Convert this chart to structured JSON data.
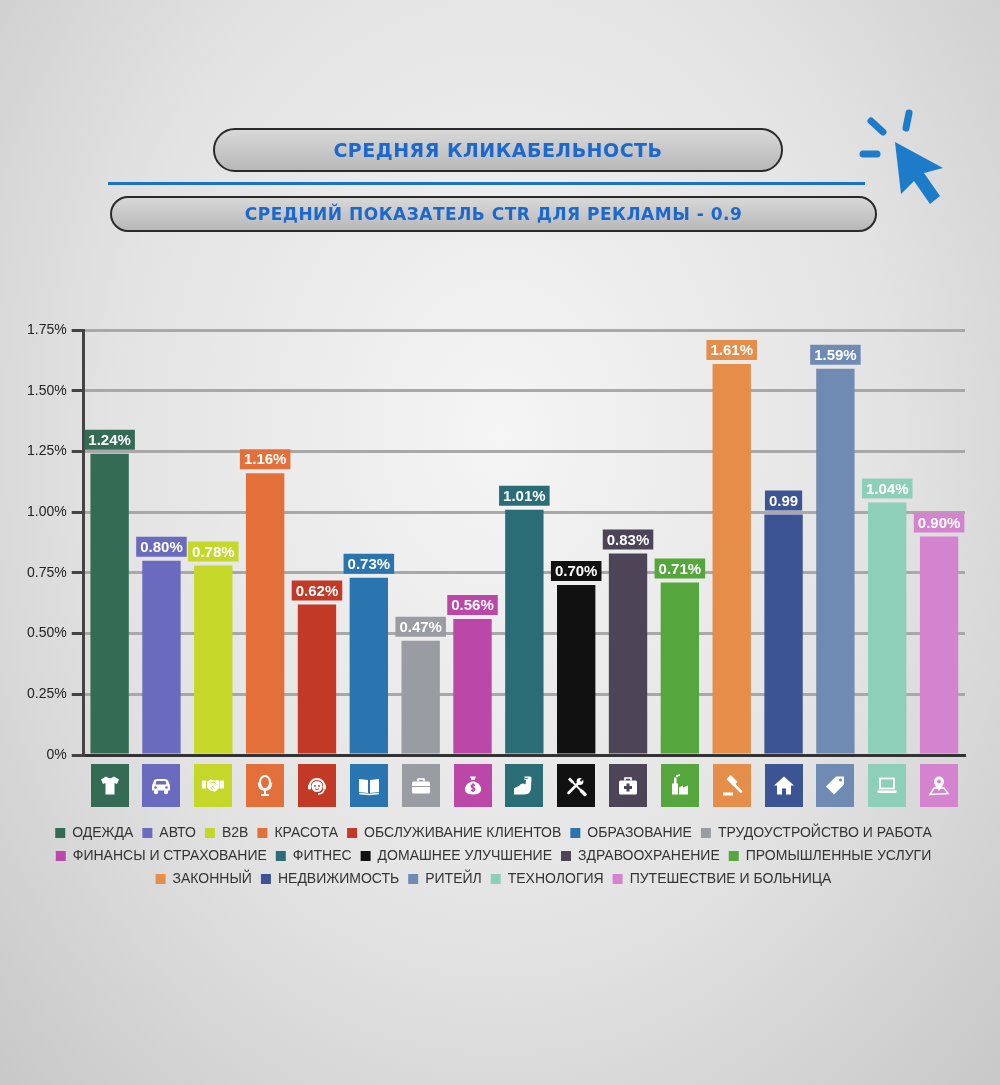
{
  "chart_data": {
    "type": "bar",
    "title": "СРЕДНЯЯ КЛИКАБЕЛЬНОСТЬ",
    "subtitle": "СРЕДНИЙ ПОКАЗАТЕЛЬ CTR ДЛЯ РЕКЛАМЫ - 0.9",
    "categories": [
      null,
      null,
      null,
      null,
      null,
      null,
      null,
      null,
      null,
      null,
      null,
      null,
      null,
      null,
      null,
      null,
      null
    ],
    "series": [
      {
        "name": "ОДЕЖДА",
        "color": "#336b55",
        "values": [
          1.24,
          null,
          null,
          null,
          null,
          null,
          null,
          null,
          null,
          null,
          null,
          null,
          null,
          null,
          null,
          null,
          null
        ],
        "value_labels": [
          "1.24%",
          null,
          null,
          null,
          null,
          null,
          null,
          null,
          null,
          null,
          null,
          null,
          null,
          null,
          null,
          null,
          null
        ]
      },
      {
        "name": "АВТО",
        "color": "#6a6abf",
        "values": [
          null,
          0.8,
          null,
          null,
          null,
          null,
          null,
          null,
          null,
          null,
          null,
          null,
          null,
          null,
          null,
          null,
          null
        ],
        "value_labels": [
          null,
          "0.80%",
          null,
          null,
          null,
          null,
          null,
          null,
          null,
          null,
          null,
          null,
          null,
          null,
          null,
          null,
          null
        ]
      },
      {
        "name": "B2B",
        "color": "#c5d82a",
        "values": [
          null,
          null,
          0.78,
          null,
          null,
          null,
          null,
          null,
          null,
          null,
          null,
          null,
          null,
          null,
          null,
          null,
          null
        ],
        "value_labels": [
          null,
          null,
          "0.78%",
          null,
          null,
          null,
          null,
          null,
          null,
          null,
          null,
          null,
          null,
          null,
          null,
          null,
          null
        ]
      },
      {
        "name": "КРАСОТА",
        "color": "#e3703a",
        "values": [
          null,
          null,
          null,
          1.16,
          null,
          null,
          null,
          null,
          null,
          null,
          null,
          null,
          null,
          null,
          null,
          null,
          null
        ],
        "value_labels": [
          null,
          null,
          null,
          "1.16%",
          null,
          null,
          null,
          null,
          null,
          null,
          null,
          null,
          null,
          null,
          null,
          null,
          null
        ]
      },
      {
        "name": "ОБСЛУЖИВАНИЕ КЛИЕНТОВ",
        "color": "#c23a26",
        "values": [
          null,
          null,
          null,
          null,
          0.62,
          null,
          null,
          null,
          null,
          null,
          null,
          null,
          null,
          null,
          null,
          null,
          null
        ],
        "value_labels": [
          null,
          null,
          null,
          null,
          "0.62%",
          null,
          null,
          null,
          null,
          null,
          null,
          null,
          null,
          null,
          null,
          null,
          null
        ]
      },
      {
        "name": "ОБРАЗОВАНИЕ",
        "color": "#2a75b0",
        "values": [
          null,
          null,
          null,
          null,
          null,
          0.73,
          null,
          null,
          null,
          null,
          null,
          null,
          null,
          null,
          null,
          null,
          null
        ],
        "value_labels": [
          null,
          null,
          null,
          null,
          null,
          "0.73%",
          null,
          null,
          null,
          null,
          null,
          null,
          null,
          null,
          null,
          null,
          null
        ]
      },
      {
        "name": "ТРУДОУСТРОЙСТВО И РАБОТА",
        "color": "#9a9ca4",
        "values": [
          null,
          null,
          null,
          null,
          null,
          null,
          0.47,
          null,
          null,
          null,
          null,
          null,
          null,
          null,
          null,
          null,
          null
        ],
        "value_labels": [
          null,
          null,
          null,
          null,
          null,
          null,
          "0.47%",
          null,
          null,
          null,
          null,
          null,
          null,
          null,
          null,
          null,
          null
        ]
      },
      {
        "name": "ФИНАНСЫ И СТРАХОВАНИЕ",
        "color": "#bb47a8",
        "values": [
          null,
          null,
          null,
          null,
          null,
          null,
          null,
          0.56,
          null,
          null,
          null,
          null,
          null,
          null,
          null,
          null,
          null
        ],
        "value_labels": [
          null,
          null,
          null,
          null,
          null,
          null,
          null,
          "0.56%",
          null,
          null,
          null,
          null,
          null,
          null,
          null,
          null,
          null
        ]
      },
      {
        "name": "ФИТНЕС",
        "color": "#2a6d77",
        "values": [
          null,
          null,
          null,
          null,
          null,
          null,
          null,
          null,
          1.01,
          null,
          null,
          null,
          null,
          null,
          null,
          null,
          null
        ],
        "value_labels": [
          null,
          null,
          null,
          null,
          null,
          null,
          null,
          null,
          "1.01%",
          null,
          null,
          null,
          null,
          null,
          null,
          null,
          null
        ]
      },
      {
        "name": "ДОМАШНЕЕ УЛУЧШЕНИЕ",
        "color": "#111111",
        "values": [
          null,
          null,
          null,
          null,
          null,
          null,
          null,
          null,
          null,
          0.7,
          null,
          null,
          null,
          null,
          null,
          null,
          null
        ],
        "value_labels": [
          null,
          null,
          null,
          null,
          null,
          null,
          null,
          null,
          null,
          "0.70%",
          null,
          null,
          null,
          null,
          null,
          null,
          null
        ]
      },
      {
        "name": "ЗДРАВООХРАНЕНИЕ",
        "color": "#4d4457",
        "values": [
          null,
          null,
          null,
          null,
          null,
          null,
          null,
          null,
          null,
          null,
          0.83,
          null,
          null,
          null,
          null,
          null,
          null
        ],
        "value_labels": [
          null,
          null,
          null,
          null,
          null,
          null,
          null,
          null,
          null,
          null,
          "0.83%",
          null,
          null,
          null,
          null,
          null,
          null
        ]
      },
      {
        "name": "ПРОМЫШЛЕННЫЕ УСЛУГИ",
        "color": "#55a63c",
        "values": [
          null,
          null,
          null,
          null,
          null,
          null,
          null,
          null,
          null,
          null,
          null,
          0.71,
          null,
          null,
          null,
          null,
          null
        ],
        "value_labels": [
          null,
          null,
          null,
          null,
          null,
          null,
          null,
          null,
          null,
          null,
          null,
          "0.71%",
          null,
          null,
          null,
          null,
          null
        ]
      },
      {
        "name": "ЗАКОННЫЙ",
        "color": "#e58e4a",
        "values": [
          null,
          null,
          null,
          null,
          null,
          null,
          null,
          null,
          null,
          null,
          null,
          null,
          1.61,
          null,
          null,
          null,
          null
        ],
        "value_labels": [
          null,
          null,
          null,
          null,
          null,
          null,
          null,
          null,
          null,
          null,
          null,
          null,
          "1.61%",
          null,
          null,
          null,
          null
        ]
      },
      {
        "name": "НЕДВИЖИМОСТЬ",
        "color": "#3c5394",
        "values": [
          null,
          null,
          null,
          null,
          null,
          null,
          null,
          null,
          null,
          null,
          null,
          null,
          null,
          0.99,
          null,
          null,
          null
        ],
        "value_labels": [
          null,
          null,
          null,
          null,
          null,
          null,
          null,
          null,
          null,
          null,
          null,
          null,
          null,
          "0.99",
          null,
          null,
          null
        ]
      },
      {
        "name": "РИТЕЙЛ",
        "color": "#6f8bb3",
        "values": [
          null,
          null,
          null,
          null,
          null,
          null,
          null,
          null,
          null,
          null,
          null,
          null,
          null,
          null,
          1.59,
          null,
          null
        ],
        "value_labels": [
          null,
          null,
          null,
          null,
          null,
          null,
          null,
          null,
          null,
          null,
          null,
          null,
          null,
          null,
          "1.59%",
          null,
          null
        ]
      },
      {
        "name": "ТЕХНОЛОГИЯ",
        "color": "#8ecfba",
        "values": [
          null,
          null,
          null,
          null,
          null,
          null,
          null,
          null,
          null,
          null,
          null,
          null,
          null,
          null,
          null,
          1.04,
          null
        ],
        "value_labels": [
          null,
          null,
          null,
          null,
          null,
          null,
          null,
          null,
          null,
          null,
          null,
          null,
          null,
          null,
          null,
          "1.04%",
          null
        ]
      },
      {
        "name": "ПУТЕШЕСТВИЕ И БОЛЬНИЦА",
        "color": "#d483cf",
        "values": [
          null,
          null,
          null,
          null,
          null,
          null,
          null,
          null,
          null,
          null,
          null,
          null,
          null,
          null,
          null,
          null,
          0.9
        ],
        "value_labels": [
          null,
          null,
          null,
          null,
          null,
          null,
          null,
          null,
          null,
          null,
          null,
          null,
          null,
          null,
          null,
          null,
          "0.90%"
        ]
      }
    ],
    "ylim": [
      0,
      1.75
    ],
    "yticks": [
      {
        "value": 0,
        "label": "0%"
      },
      {
        "value": 0.25,
        "label": "0.25%"
      },
      {
        "value": 0.5,
        "label": "0.50%"
      },
      {
        "value": 0.75,
        "label": "0.75%"
      },
      {
        "value": 1,
        "label": "1.00%"
      },
      {
        "value": 1.25,
        "label": "1.25%"
      },
      {
        "value": 1.5,
        "label": "1.50%"
      },
      {
        "value": 1.75,
        "label": "1.75%"
      }
    ],
    "grid": "y",
    "legend": "bottom",
    "tick_labels": "y"
  }
}
